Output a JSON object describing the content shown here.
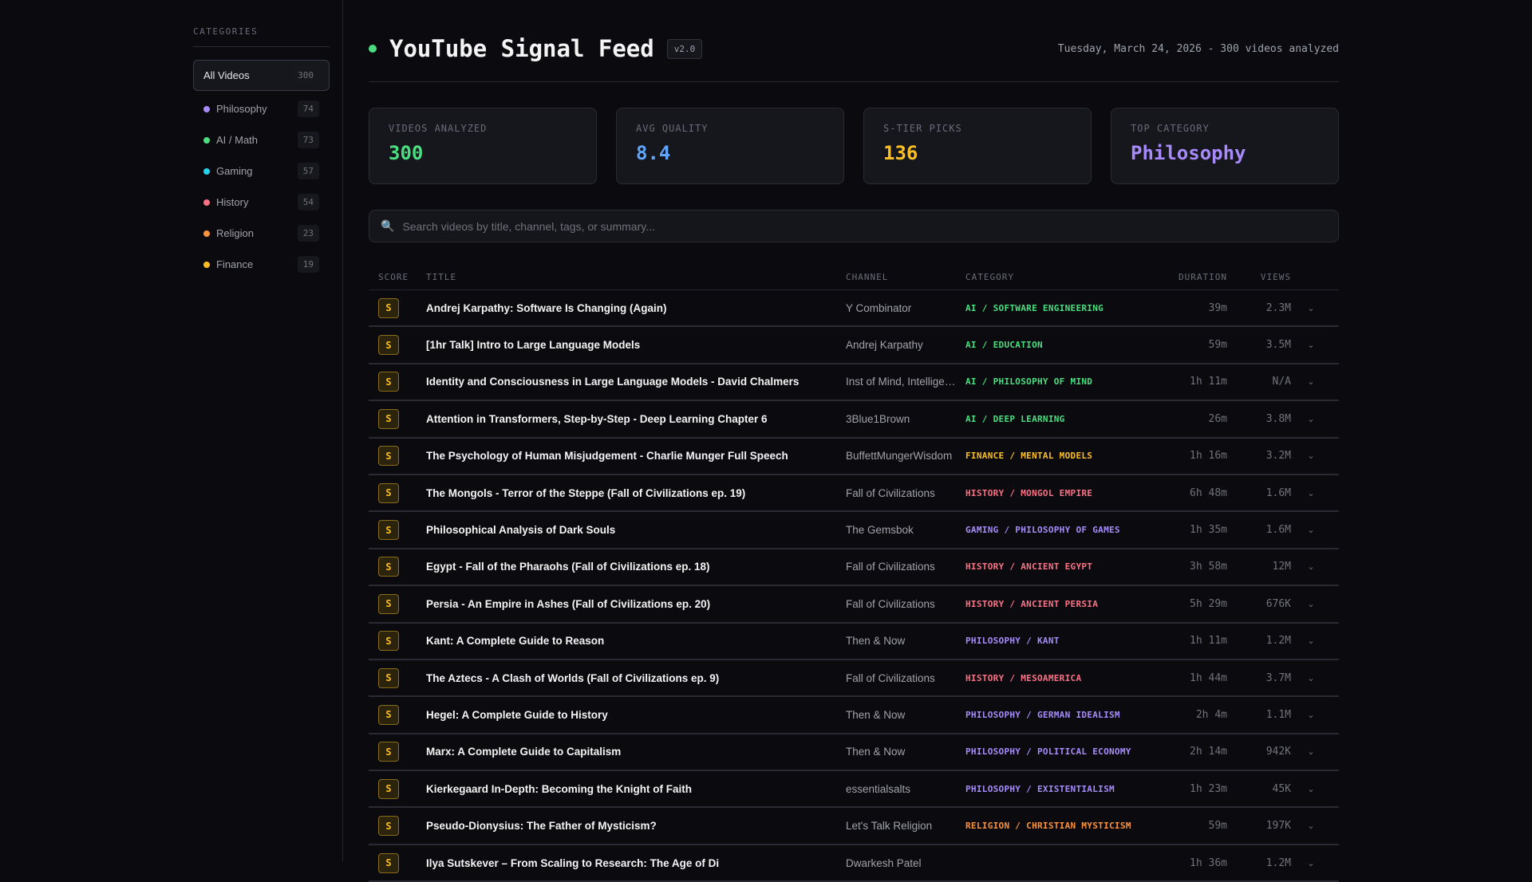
{
  "sidebar": {
    "heading": "CATEGORIES",
    "items": [
      {
        "label": "All Videos",
        "count": "300",
        "color": ""
      },
      {
        "label": "Philosophy",
        "count": "74",
        "color": "#a78bfa"
      },
      {
        "label": "AI / Math",
        "count": "73",
        "color": "#4ade80"
      },
      {
        "label": "Gaming",
        "count": "57",
        "color": "#22d3ee"
      },
      {
        "label": "History",
        "count": "54",
        "color": "#fb7185"
      },
      {
        "label": "Religion",
        "count": "23",
        "color": "#fb923c"
      },
      {
        "label": "Finance",
        "count": "19",
        "color": "#fbbf24"
      }
    ]
  },
  "header": {
    "title": "YouTube Signal Feed",
    "version": "v2.0",
    "date": "Tuesday, March 24, 2026 - 300 videos analyzed"
  },
  "stats": [
    {
      "label": "VIDEOS ANALYZED",
      "value": "300",
      "color": "#4ade80"
    },
    {
      "label": "AVG QUALITY",
      "value": "8.4",
      "color": "#60a5fa"
    },
    {
      "label": "S-TIER PICKS",
      "value": "136",
      "color": "#fbbf24"
    },
    {
      "label": "TOP CATEGORY",
      "value": "Philosophy",
      "color": "#a78bfa"
    }
  ],
  "search": {
    "placeholder": "Search videos by title, channel, tags, or summary...",
    "value": ""
  },
  "table": {
    "headers": {
      "score": "SCORE",
      "title": "TITLE",
      "channel": "CHANNEL",
      "category": "CATEGORY",
      "duration": "DURATION",
      "views": "VIEWS"
    },
    "rows": [
      {
        "score": "S",
        "title": "Andrej Karpathy: Software Is Changing (Again)",
        "channel": "Y Combinator",
        "category": "AI / SOFTWARE ENGINEERING",
        "color": "#4ade80",
        "duration": "39m",
        "views": "2.3M"
      },
      {
        "score": "S",
        "title": "[1hr Talk] Intro to Large Language Models",
        "channel": "Andrej Karpathy",
        "category": "AI / EDUCATION",
        "color": "#4ade80",
        "duration": "59m",
        "views": "3.5M"
      },
      {
        "score": "S",
        "title": "Identity and Consciousness in Large Language Models - David Chalmers",
        "channel": "Inst of Mind, Intelligence",
        "category": "AI / PHILOSOPHY OF MIND",
        "color": "#4ade80",
        "duration": "1h 11m",
        "views": "N/A"
      },
      {
        "score": "S",
        "title": "Attention in Transformers, Step-by-Step - Deep Learning Chapter 6",
        "channel": "3Blue1Brown",
        "category": "AI / DEEP LEARNING",
        "color": "#4ade80",
        "duration": "26m",
        "views": "3.8M"
      },
      {
        "score": "S",
        "title": "The Psychology of Human Misjudgement - Charlie Munger Full Speech",
        "channel": "BuffettMungerWisdom",
        "category": "FINANCE / MENTAL MODELS",
        "color": "#fbbf24",
        "duration": "1h 16m",
        "views": "3.2M"
      },
      {
        "score": "S",
        "title": "The Mongols - Terror of the Steppe (Fall of Civilizations ep. 19)",
        "channel": "Fall of Civilizations",
        "category": "HISTORY / MONGOL EMPIRE",
        "color": "#fb7185",
        "duration": "6h 48m",
        "views": "1.6M"
      },
      {
        "score": "S",
        "title": "Philosophical Analysis of Dark Souls",
        "channel": "The Gemsbok",
        "category": "GAMING / PHILOSOPHY OF GAMES",
        "color": "#a78bfa",
        "duration": "1h 35m",
        "views": "1.6M"
      },
      {
        "score": "S",
        "title": "Egypt - Fall of the Pharaohs (Fall of Civilizations ep. 18)",
        "channel": "Fall of Civilizations",
        "category": "HISTORY / ANCIENT EGYPT",
        "color": "#fb7185",
        "duration": "3h 58m",
        "views": "12M"
      },
      {
        "score": "S",
        "title": "Persia - An Empire in Ashes (Fall of Civilizations ep. 20)",
        "channel": "Fall of Civilizations",
        "category": "HISTORY / ANCIENT PERSIA",
        "color": "#fb7185",
        "duration": "5h 29m",
        "views": "676K"
      },
      {
        "score": "S",
        "title": "Kant: A Complete Guide to Reason",
        "channel": "Then & Now",
        "category": "PHILOSOPHY / KANT",
        "color": "#a78bfa",
        "duration": "1h 11m",
        "views": "1.2M"
      },
      {
        "score": "S",
        "title": "The Aztecs - A Clash of Worlds (Fall of Civilizations ep. 9)",
        "channel": "Fall of Civilizations",
        "category": "HISTORY / MESOAMERICA",
        "color": "#fb7185",
        "duration": "1h 44m",
        "views": "3.7M"
      },
      {
        "score": "S",
        "title": "Hegel: A Complete Guide to History",
        "channel": "Then & Now",
        "category": "PHILOSOPHY / GERMAN IDEALISM",
        "color": "#a78bfa",
        "duration": "2h 4m",
        "views": "1.1M"
      },
      {
        "score": "S",
        "title": "Marx: A Complete Guide to Capitalism",
        "channel": "Then & Now",
        "category": "PHILOSOPHY / POLITICAL ECONOMY",
        "color": "#a78bfa",
        "duration": "2h 14m",
        "views": "942K"
      },
      {
        "score": "S",
        "title": "Kierkegaard In-Depth: Becoming the Knight of Faith",
        "channel": "essentialsalts",
        "category": "PHILOSOPHY / EXISTENTIALISM",
        "color": "#a78bfa",
        "duration": "1h 23m",
        "views": "45K"
      },
      {
        "score": "S",
        "title": "Pseudo-Dionysius: The Father of Mysticism?",
        "channel": "Let's Talk Religion",
        "category": "RELIGION / CHRISTIAN MYSTICISM",
        "color": "#fb923c",
        "duration": "59m",
        "views": "197K"
      },
      {
        "score": "S",
        "title": "Ilya Sutskever – From Scaling to Research: The Age of Di",
        "channel": "Dwarkesh Patel",
        "category": "",
        "color": "#4ade80",
        "duration": "1h 36m",
        "views": "1.2M"
      }
    ]
  }
}
